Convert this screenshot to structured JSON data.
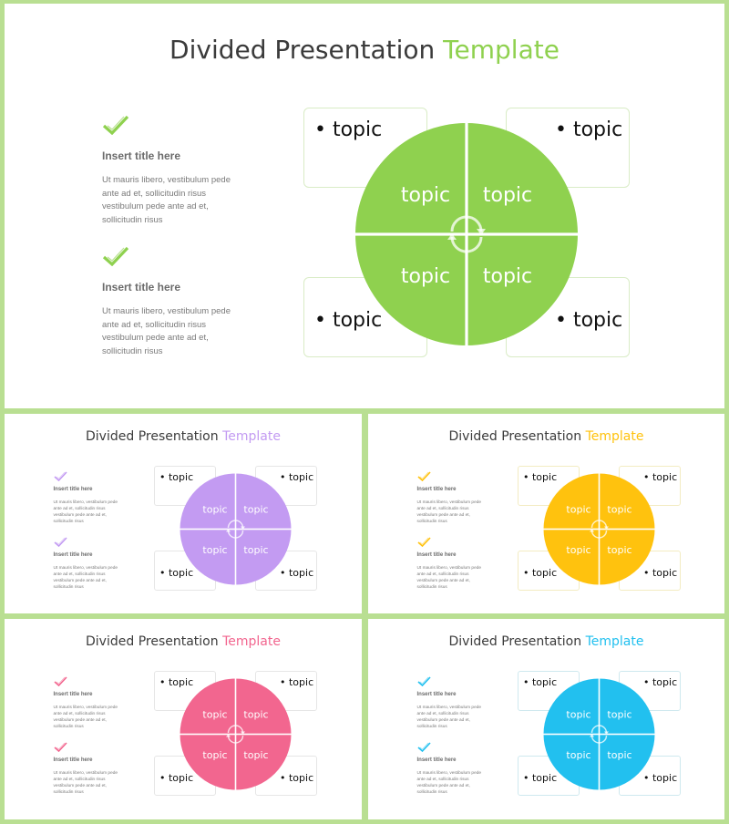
{
  "slides": [
    {
      "id": "green",
      "title_main": "Divided Presentation",
      "title_accent": "Template",
      "accent": "#8fd14f",
      "box_border": "#d9ecc6",
      "items": [
        {
          "title": "Insert title here",
          "body": "Ut mauris libero, vestibulum pede ante ad et, sollicitudin risus vestibulum pede ante ad et, sollicitudin risus"
        },
        {
          "title": "Insert title here",
          "body": "Ut mauris libero, vestibulum pede ante ad et, sollicitudin risus vestibulum pede ante ad et, sollicitudin risus"
        }
      ],
      "quadrant_labels": [
        "topic",
        "topic",
        "topic",
        "topic"
      ],
      "box_labels": [
        "• topic",
        "• topic",
        "• topic",
        "• topic"
      ]
    },
    {
      "id": "purple",
      "title_main": "Divided Presentation",
      "title_accent": "Template",
      "accent": "#c39bf2",
      "box_border": "#e6e6e6",
      "items": [
        {
          "title": "Insert title here",
          "body": "Ut mauris libero, vestibulum pede ante ad et, sollicitudin risus vestibulum pede ante ad et, sollicitudin risus"
        },
        {
          "title": "Insert title here",
          "body": "Ut mauris libero, vestibulum pede ante ad et, sollicitudin risus vestibulum pede ante ad et, sollicitudin risus"
        }
      ],
      "quadrant_labels": [
        "topic",
        "topic",
        "topic",
        "topic"
      ],
      "box_labels": [
        "• topic",
        "• topic",
        "• topic",
        "• topic"
      ]
    },
    {
      "id": "yellow",
      "title_main": "Divided Presentation",
      "title_accent": "Template",
      "accent": "#ffc20e",
      "box_border": "#f3ecc2",
      "items": [
        {
          "title": "Insert title here",
          "body": "Ut mauris libero, vestibulum pede ante ad et, sollicitudin risus vestibulum pede ante ad et, sollicitudin risus"
        },
        {
          "title": "Insert title here",
          "body": "Ut mauris libero, vestibulum pede ante ad et, sollicitudin risus vestibulum pede ante ad et, sollicitudin risus"
        }
      ],
      "quadrant_labels": [
        "topic",
        "topic",
        "topic",
        "topic"
      ],
      "box_labels": [
        "• topic",
        "• topic",
        "• topic",
        "• topic"
      ]
    },
    {
      "id": "pink",
      "title_main": "Divided Presentation",
      "title_accent": "Template",
      "accent": "#f2668f",
      "box_border": "#e6e6e6",
      "items": [
        {
          "title": "Insert title here",
          "body": "Ut mauris libero, vestibulum pede ante ad et, sollicitudin risus vestibulum pede ante ad et, sollicitudin risus"
        },
        {
          "title": "Insert title here",
          "body": "Ut mauris libero, vestibulum pede ante ad et, sollicitudin risus vestibulum pede ante ad et, sollicitudin risus"
        }
      ],
      "quadrant_labels": [
        "topic",
        "topic",
        "topic",
        "topic"
      ],
      "box_labels": [
        "• topic",
        "• topic",
        "• topic",
        "• topic"
      ]
    },
    {
      "id": "blue",
      "title_main": "Divided Presentation",
      "title_accent": "Template",
      "accent": "#22c0ef",
      "box_border": "#cfe9ef",
      "items": [
        {
          "title": "Insert title here",
          "body": "Ut mauris libero, vestibulum pede ante ad et, sollicitudin risus vestibulum pede ante ad et, sollicitudin risus"
        },
        {
          "title": "Insert title here",
          "body": "Ut mauris libero, vestibulum pede ante ad et, sollicitudin risus vestibulum pede ante ad et, sollicitudin risus"
        }
      ],
      "quadrant_labels": [
        "topic",
        "topic",
        "topic",
        "topic"
      ],
      "box_labels": [
        "• topic",
        "• topic",
        "• topic",
        "• topic"
      ]
    }
  ]
}
